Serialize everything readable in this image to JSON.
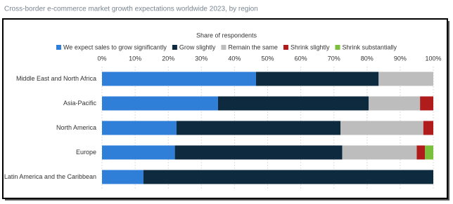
{
  "chart_data": {
    "type": "stacked-barh",
    "title": "Cross-border e-commerce market growth expectations worldwide 2023, by region",
    "xlabel": "Share of respondents",
    "categories": [
      "Middle East and North Africa",
      "Asia-Pacific",
      "North America",
      "Europe",
      "Latin America and the Caribbean"
    ],
    "series": [
      {
        "name": "We expect sales to grow significantly",
        "color": "#2f7ed8",
        "values": [
          46.5,
          35,
          22.5,
          22,
          12.5
        ]
      },
      {
        "name": "Grow slightly",
        "color": "#0d2a3f",
        "values": [
          37,
          45.5,
          49.5,
          50.5,
          87.5
        ]
      },
      {
        "name": "Remain the same",
        "color": "#bdbdbd",
        "values": [
          16.5,
          15.5,
          25,
          22.5,
          0
        ]
      },
      {
        "name": "Shrink slightly",
        "color": "#b01c1c",
        "values": [
          0,
          4,
          3,
          2.5,
          0
        ]
      },
      {
        "name": "Shrink substantially",
        "color": "#7ac03a",
        "values": [
          0,
          0,
          0,
          2.5,
          0
        ]
      }
    ],
    "xlim": [
      0,
      100
    ],
    "xticks": [
      {
        "value": 0,
        "label": "0%"
      },
      {
        "value": 10,
        "label": "10%"
      },
      {
        "value": 20,
        "label": "20%"
      },
      {
        "value": 30,
        "label": "30%"
      },
      {
        "value": 40,
        "label": "40%"
      },
      {
        "value": 50,
        "label": "50%"
      },
      {
        "value": 60,
        "label": "60%"
      },
      {
        "value": 70,
        "label": "70%"
      },
      {
        "value": 80,
        "label": "80%"
      },
      {
        "value": 90,
        "label": "90%"
      },
      {
        "value": 100,
        "label": "100%"
      }
    ],
    "grid": true,
    "legend": "top"
  }
}
